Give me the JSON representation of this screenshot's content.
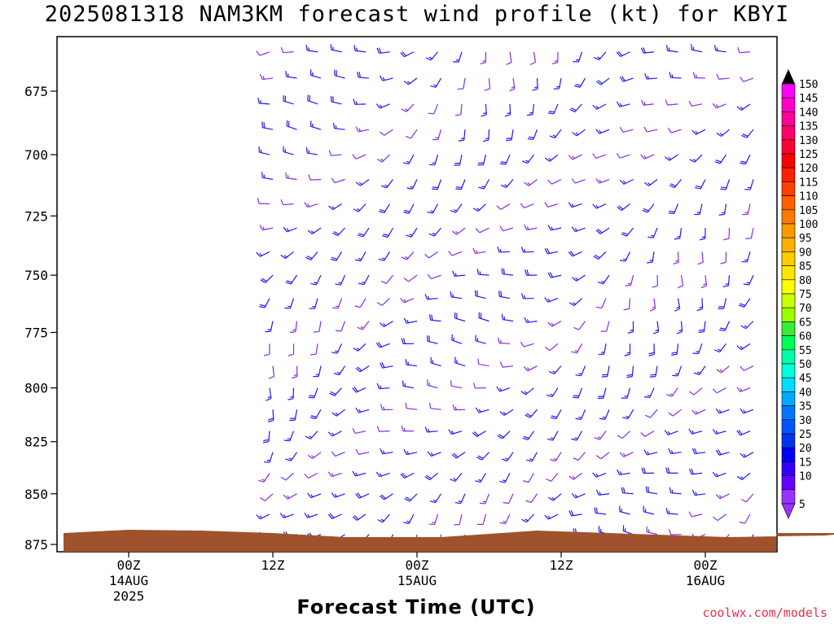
{
  "title": "2025081318 NAM3KM forecast wind profile (kt) for KBYI",
  "credit": "coolwx.com/models",
  "chart_data": {
    "type": "wind-barb time-height section",
    "xlabel": "Forecast Time (UTC)",
    "ylabel": "",
    "y_ticks": [
      "675",
      "700",
      "725",
      "750",
      "775",
      "800",
      "825",
      "850",
      "875"
    ],
    "x_ticks": [
      {
        "hour": "00Z",
        "date": "14AUG",
        "year": "2025"
      },
      {
        "hour": "12Z",
        "date": "",
        "year": ""
      },
      {
        "hour": "00Z",
        "date": "15AUG",
        "year": ""
      },
      {
        "hour": "12Z",
        "date": "",
        "year": ""
      },
      {
        "hour": "00Z",
        "date": "16AUG",
        "year": ""
      }
    ],
    "colorbar_levels": [
      "150",
      "145",
      "140",
      "135",
      "130",
      "125",
      "120",
      "115",
      "110",
      "105",
      "100",
      "95",
      "90",
      "85",
      "80",
      "75",
      "70",
      "65",
      "60",
      "55",
      "50",
      "45",
      "40",
      "35",
      "30",
      "25",
      "20",
      "15",
      "10",
      "5"
    ],
    "colorbar_colors": [
      "#ff00ff",
      "#ff00cc",
      "#ff0099",
      "#ff0066",
      "#ff0033",
      "#ff0000",
      "#ff2000",
      "#ff4000",
      "#ff6000",
      "#ff7a00",
      "#ff9900",
      "#ffb000",
      "#ffcc00",
      "#ffe600",
      "#ffff00",
      "#ccff00",
      "#99ff00",
      "#33ee33",
      "#00ff55",
      "#00ffaa",
      "#00ffdd",
      "#00ddff",
      "#00aaff",
      "#0077ff",
      "#0055ff",
      "#0033ee",
      "#0000ff",
      "#3300ff",
      "#6600ff",
      "#9933ff"
    ],
    "forecast_start_hour": 18,
    "forecast_end_hour": 78,
    "barb_rows_hpa": [
      660,
      670,
      680,
      690,
      700,
      710,
      720,
      730,
      740,
      750,
      760,
      770,
      780,
      790,
      800,
      810,
      820,
      830,
      840,
      850,
      860,
      870
    ],
    "terrain_color": "#a0522d"
  }
}
